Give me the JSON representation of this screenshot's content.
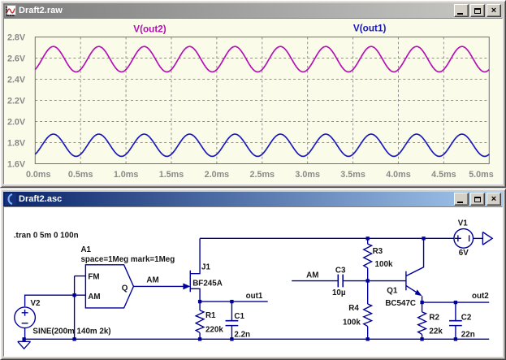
{
  "plot_window": {
    "title": "Draft2.raw",
    "window_buttons": [
      "minimize",
      "maximize",
      "close"
    ],
    "state": "inactive"
  },
  "schematic_window": {
    "title": "Draft2.asc",
    "window_buttons": [
      "minimize",
      "maximize",
      "close"
    ],
    "state": "active"
  },
  "chart_data": {
    "type": "line",
    "x_unit": "ms",
    "xlim": [
      0,
      5
    ],
    "ylim": [
      1.6,
      2.8
    ],
    "grid": true,
    "background": "#FBFBE9",
    "x_ticks": [
      "0.0ms",
      "0.5ms",
      "1.0ms",
      "1.5ms",
      "2.0ms",
      "2.5ms",
      "3.0ms",
      "3.5ms",
      "4.0ms",
      "4.5ms",
      "5.0ms"
    ],
    "y_ticks": [
      "2.8V",
      "2.6V",
      "2.4V",
      "2.2V",
      "2.0V",
      "1.8V",
      "1.6V"
    ],
    "series": [
      {
        "name": "V(out2)",
        "color": "#B40EB4",
        "waveform": "sine",
        "mean_v": 2.59,
        "amplitude_v": 0.12,
        "frequency_hz": 2000,
        "phase_rad": -0.95
      },
      {
        "name": "V(out1)",
        "color": "#1818C0",
        "waveform": "sine",
        "mean_v": 1.775,
        "amplitude_v": 0.105,
        "frequency_hz": 2000,
        "phase_rad": -0.95
      }
    ]
  },
  "schematic": {
    "directive": ".tran 0 5m 0 100n",
    "wire_color": "#000096",
    "a1": {
      "name": "A1",
      "params": "space=1Meg mark=1Meg",
      "pin_fm": "FM",
      "pin_am": "AM",
      "pin_q": "Q"
    },
    "v2": {
      "name": "V2",
      "value": "SINE(200m 140m 2k)"
    },
    "v1": {
      "name": "V1",
      "value": "6V"
    },
    "j1": {
      "name": "J1",
      "value": "BF245A"
    },
    "q1": {
      "name": "Q1",
      "value": "BC547C"
    },
    "r1": {
      "name": "R1",
      "value": "220k"
    },
    "r2": {
      "name": "R2",
      "value": "22k"
    },
    "r3": {
      "name": "R3",
      "value": "100k"
    },
    "r4": {
      "name": "R4",
      "value": "100k"
    },
    "c1": {
      "name": "C1",
      "value": "2.2n"
    },
    "c2": {
      "name": "C2",
      "value": "22n"
    },
    "c3": {
      "name": "C3",
      "value": "10µ"
    },
    "net_labels": {
      "am1": "AM",
      "am2": "AM",
      "out1": "out1",
      "out2": "out2"
    }
  }
}
